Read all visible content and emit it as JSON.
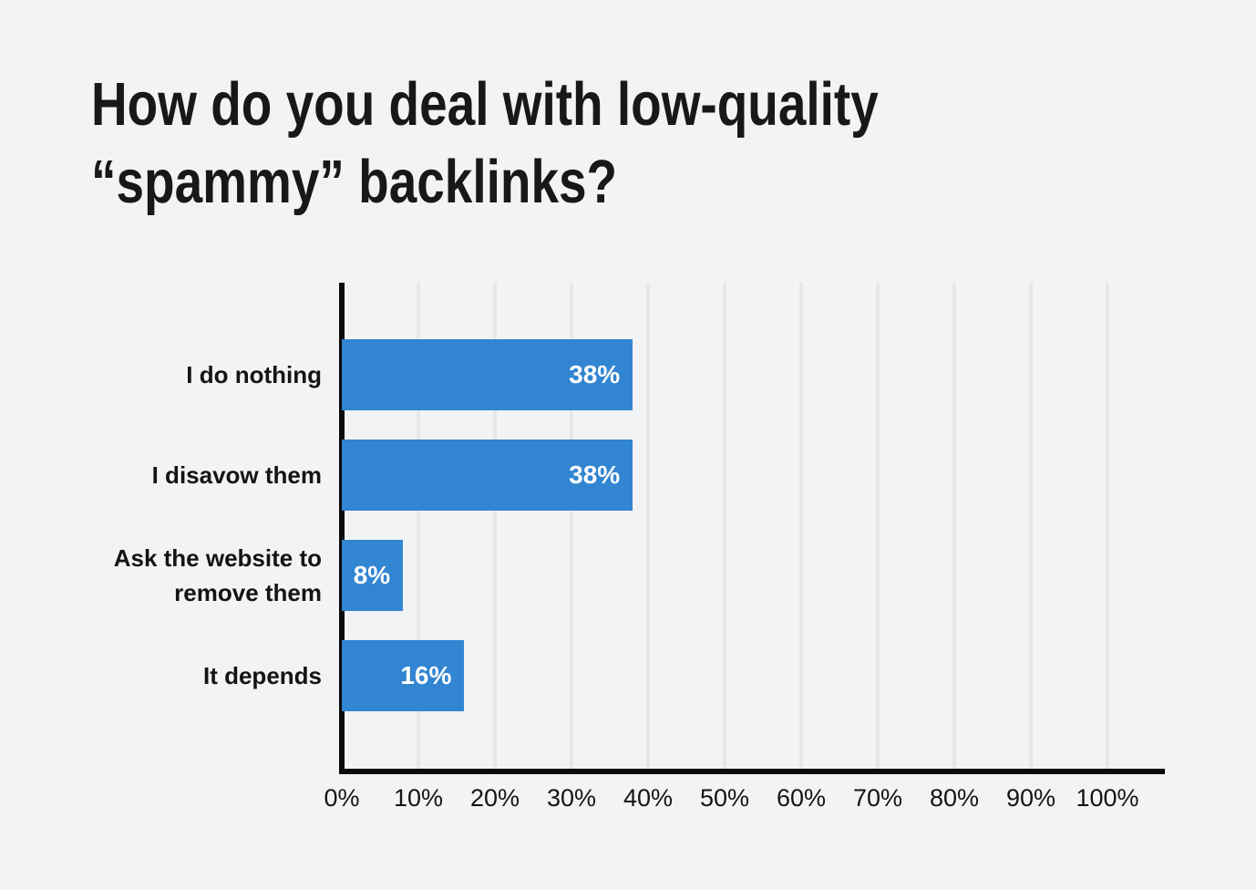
{
  "title_lines": [
    "How do you deal with low-quality",
    "“spammy” backlinks?"
  ],
  "colors": {
    "background": "#f2f3f5",
    "bar": "#3285d1",
    "axis": "#0b0b0c",
    "gridline": "#e6e7e9",
    "title_text": "#17181a",
    "label_text": "#131415",
    "value_text": "#ffffff"
  },
  "chart_data": {
    "type": "bar",
    "orientation": "horizontal",
    "title": "How do you deal with low-quality “spammy” backlinks?",
    "categories": [
      "I do nothing",
      "I disavow them",
      "Ask the website to remove them",
      "It depends"
    ],
    "values": [
      38,
      38,
      8,
      16
    ],
    "value_labels": [
      "38%",
      "38%",
      "8%",
      "16%"
    ],
    "x_ticks": [
      "0%",
      "10%",
      "20%",
      "30%",
      "40%",
      "50%",
      "60%",
      "70%",
      "80%",
      "90%",
      "100%"
    ],
    "xlim": [
      0,
      100
    ],
    "xlabel": "",
    "ylabel": "",
    "grid": "vertical",
    "legend": "none",
    "value_label_position": "inside-right"
  }
}
